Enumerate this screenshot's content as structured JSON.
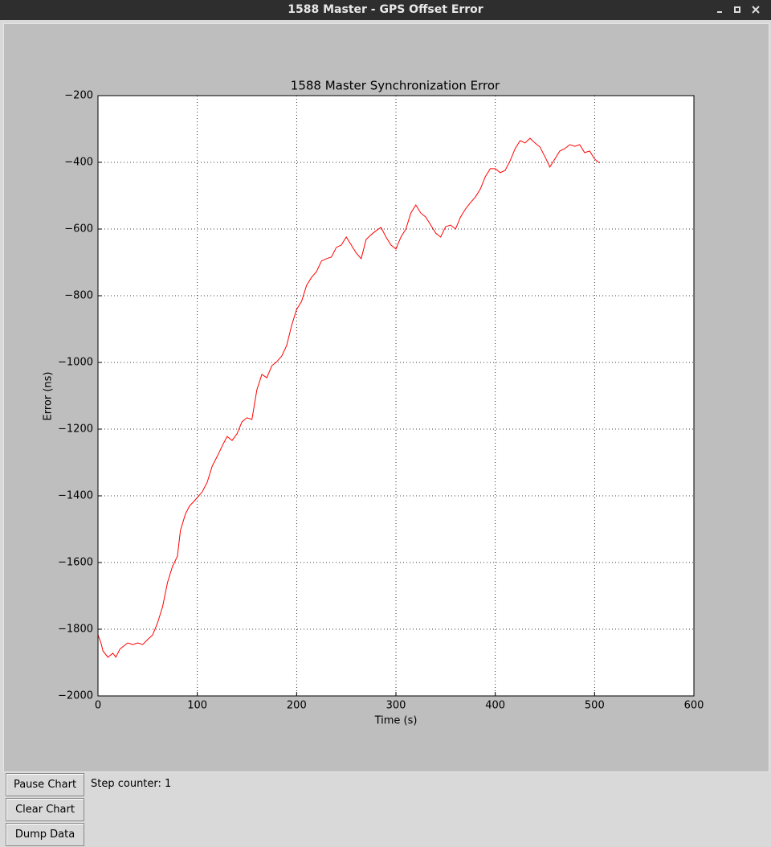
{
  "window": {
    "title": "1588 Master - GPS Offset Error"
  },
  "chart_data": {
    "type": "line",
    "title": "1588 Master Synchronization Error",
    "x_label": "Time (s)",
    "y_label": "Error (ns)",
    "xlim": [
      0,
      600
    ],
    "ylim": [
      -2000,
      -200
    ],
    "xticks": [
      0,
      100,
      200,
      300,
      400,
      500,
      600
    ],
    "yticks": [
      {
        "value": -2000,
        "label": "−2000"
      },
      {
        "value": -1800,
        "label": "−1800"
      },
      {
        "value": -1600,
        "label": "−1600"
      },
      {
        "value": -1400,
        "label": "−1400"
      },
      {
        "value": -1200,
        "label": "−1200"
      },
      {
        "value": -1000,
        "label": "−1000"
      },
      {
        "value": -800,
        "label": "−800"
      },
      {
        "value": -600,
        "label": "−600"
      },
      {
        "value": -400,
        "label": "−400"
      },
      {
        "value": -200,
        "label": "−200"
      }
    ],
    "grid": true,
    "color": "#ff0000",
    "x": [
      0,
      3,
      5,
      10,
      15,
      18,
      22,
      26,
      30,
      35,
      40,
      45,
      50,
      55,
      60,
      65,
      70,
      75,
      80,
      83,
      88,
      92,
      98,
      105,
      110,
      115,
      120,
      125,
      130,
      135,
      140,
      145,
      150,
      155,
      160,
      165,
      170,
      175,
      180,
      185,
      190,
      195,
      200,
      205,
      210,
      215,
      220,
      225,
      230,
      235,
      240,
      245,
      250,
      255,
      260,
      265,
      270,
      275,
      280,
      285,
      290,
      295,
      300,
      305,
      310,
      315,
      320,
      325,
      330,
      335,
      340,
      345,
      350,
      355,
      360,
      365,
      370,
      375,
      380,
      385,
      390,
      395,
      400,
      405,
      410,
      415,
      420,
      425,
      430,
      435,
      440,
      445,
      450,
      455,
      460,
      465,
      470,
      475,
      480,
      485,
      490,
      495,
      500,
      505
    ],
    "values": [
      -1817,
      -1841,
      -1865,
      -1884,
      -1872,
      -1884,
      -1860,
      -1850,
      -1841,
      -1846,
      -1841,
      -1846,
      -1831,
      -1817,
      -1781,
      -1733,
      -1660,
      -1612,
      -1581,
      -1504,
      -1455,
      -1431,
      -1412,
      -1388,
      -1359,
      -1311,
      -1282,
      -1251,
      -1222,
      -1234,
      -1214,
      -1178,
      -1166,
      -1171,
      -1082,
      -1036,
      -1046,
      -1010,
      -998,
      -981,
      -949,
      -889,
      -841,
      -817,
      -769,
      -745,
      -728,
      -696,
      -689,
      -684,
      -655,
      -648,
      -624,
      -648,
      -672,
      -689,
      -631,
      -617,
      -605,
      -595,
      -624,
      -648,
      -660,
      -624,
      -600,
      -552,
      -528,
      -552,
      -564,
      -588,
      -612,
      -624,
      -593,
      -588,
      -600,
      -564,
      -540,
      -521,
      -504,
      -480,
      -443,
      -419,
      -419,
      -431,
      -424,
      -395,
      -359,
      -335,
      -342,
      -328,
      -342,
      -354,
      -383,
      -414,
      -390,
      -366,
      -359,
      -347,
      -352,
      -347,
      -371,
      -366,
      -390,
      -402
    ]
  },
  "controls": {
    "buttons": [
      "Pause Chart",
      "Clear Chart",
      "Dump Data"
    ],
    "status": "Step counter: 1"
  }
}
